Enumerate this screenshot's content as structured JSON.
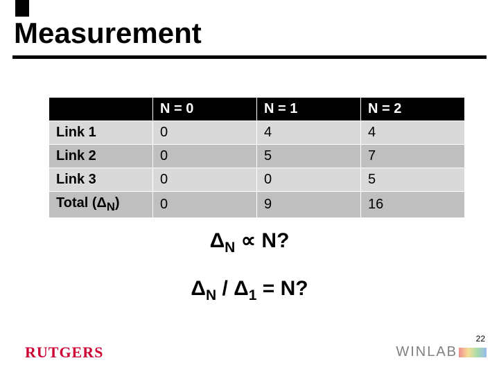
{
  "title": "Measurement",
  "table": {
    "columns": [
      "",
      "N = 0",
      "N = 1",
      "N = 2"
    ],
    "rows": [
      {
        "label": "Link 1",
        "values": [
          "0",
          "4",
          "4"
        ],
        "shade": "light"
      },
      {
        "label": "Link 2",
        "values": [
          "0",
          "5",
          "7"
        ],
        "shade": "dark"
      },
      {
        "label": "Link 3",
        "values": [
          "0",
          "0",
          "5"
        ],
        "shade": "light"
      },
      {
        "label_html": "Total (Δ<sub>N</sub>)",
        "label": "Total (ΔN)",
        "values": [
          "0",
          "9",
          "16"
        ],
        "shade": "dark"
      }
    ],
    "header_bg": "#000000",
    "header_color": "#ffffff",
    "row_light_bg": "#d9d9d9",
    "row_dark_bg": "#bfbfbf",
    "cell_fontsize": 20
  },
  "formulas": {
    "line1_html": "Δ<span class=\"sub\">N</span> ∝ N?",
    "line2_html": "Δ<span class=\"sub\">N</span> / Δ<span class=\"sub\">1</span> = N?",
    "fontsize": 30
  },
  "footer": {
    "logo_text": "RUTGERS",
    "logo_color": "#cc0033",
    "lab_text": "WINLAB",
    "lab_color": "#808080",
    "page_number": "22"
  },
  "colors": {
    "title_underline": "#000000",
    "background": "#ffffff"
  }
}
